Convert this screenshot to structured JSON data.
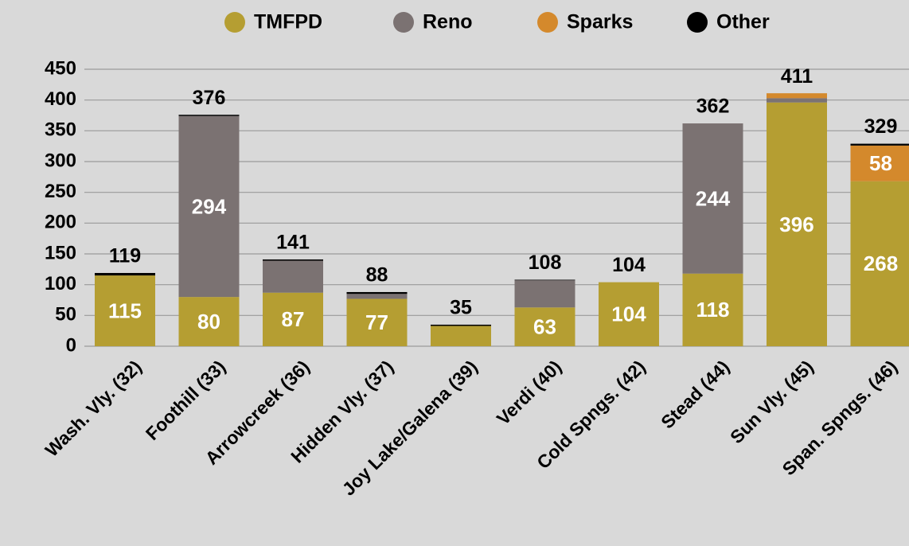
{
  "chart_data": {
    "type": "stacked_bar",
    "categories": [
      "Wash. Vly. (32)",
      "Foothill (33)",
      "Arrowcreek (36)",
      "Hidden Vly. (37)",
      "Joy Lake/Galena (39)",
      "Verdi (40)",
      "Cold Spngs. (42)",
      "Stead (44)",
      "Sun Vly. (45)",
      "Span. Spngs. (46)"
    ],
    "series": [
      {
        "name": "TMFPD",
        "color": "#b59e32",
        "values": [
          115,
          80,
          87,
          77,
          33,
          63,
          104,
          118,
          396,
          268
        ],
        "value_labels": [
          "115",
          "80",
          "87",
          "77",
          null,
          "63",
          "104",
          "118",
          "396",
          "268"
        ]
      },
      {
        "name": "Reno",
        "color": "#7b7272",
        "values": [
          0,
          294,
          52,
          8,
          0,
          44,
          0,
          244,
          7,
          0
        ],
        "value_labels": [
          null,
          "294",
          null,
          null,
          null,
          null,
          null,
          "244",
          null,
          null
        ]
      },
      {
        "name": "Sparks",
        "color": "#d4892c",
        "values": [
          0,
          0,
          0,
          0,
          0,
          0,
          0,
          0,
          8,
          58
        ],
        "value_labels": [
          null,
          null,
          null,
          null,
          null,
          null,
          null,
          null,
          null,
          "58"
        ]
      },
      {
        "name": "Other",
        "color": "#000000",
        "values": [
          4,
          2,
          2,
          3,
          2,
          1,
          0,
          0,
          0,
          3
        ],
        "value_labels": [
          null,
          null,
          null,
          null,
          null,
          null,
          null,
          null,
          null,
          null
        ]
      }
    ],
    "totals": [
      119,
      376,
      141,
      88,
      35,
      108,
      104,
      362,
      411,
      329
    ],
    "ylim": [
      0,
      450
    ],
    "yticks": [
      0,
      50,
      100,
      150,
      200,
      250,
      300,
      350,
      400,
      450
    ],
    "grid": true,
    "legend": "top"
  }
}
